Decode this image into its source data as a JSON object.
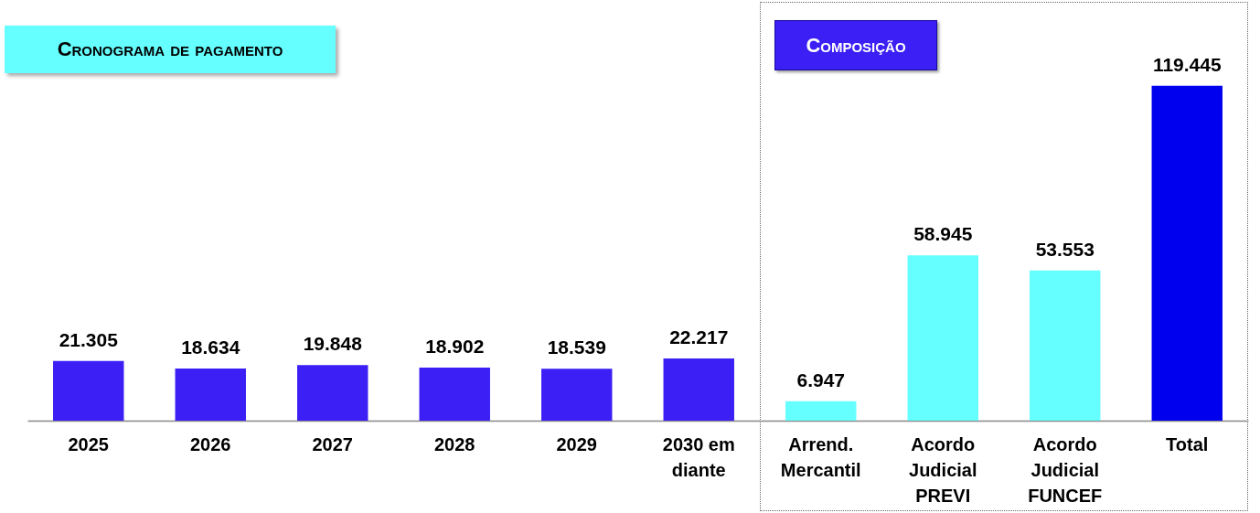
{
  "chart_data": {
    "type": "bar",
    "categories": [
      "2025",
      "2026",
      "2027",
      "2028",
      "2029",
      "2030 em diante",
      "Arrend. Mercantil",
      "Acordo Judicial PREVI",
      "Acordo Judicial FUNCEF",
      "Total"
    ],
    "values": [
      21305,
      18634,
      19848,
      18902,
      18539,
      22217,
      6947,
      58945,
      53553,
      119445
    ],
    "value_labels": [
      "21.305",
      "18.634",
      "19.848",
      "18.902",
      "18.539",
      "22.217",
      "6.947",
      "58.945",
      "53.553",
      "119.445"
    ],
    "colors": [
      "#3b1ff5",
      "#3b1ff5",
      "#3b1ff5",
      "#3b1ff5",
      "#3b1ff5",
      "#3b1ff5",
      "#66ffff",
      "#66ffff",
      "#66ffff",
      "#0000ee"
    ],
    "annotations": [
      "Cronograma de pagamento",
      "Composição"
    ]
  }
}
